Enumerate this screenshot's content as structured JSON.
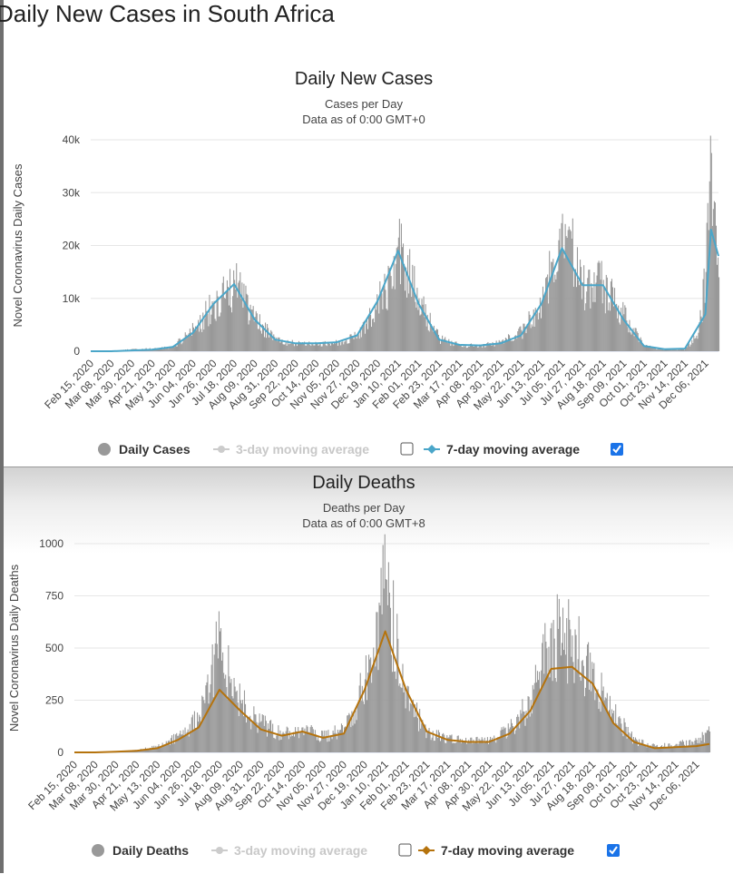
{
  "page_title": "Daily New Cases in South Africa",
  "x_dates": [
    "Feb 15, 2020",
    "Mar 08, 2020",
    "Mar 30, 2020",
    "Apr 21, 2020",
    "May 13, 2020",
    "Jun 04, 2020",
    "Jun 26, 2020",
    "Jul 18, 2020",
    "Aug 09, 2020",
    "Aug 31, 2020",
    "Sep 22, 2020",
    "Oct 14, 2020",
    "Nov 05, 2020",
    "Nov 27, 2020",
    "Dec 19, 2020",
    "Jan 10, 2021",
    "Feb 01, 2021",
    "Feb 23, 2021",
    "Mar 17, 2021",
    "Apr 08, 2021",
    "Apr 30, 2021",
    "May 22, 2021",
    "Jun 13, 2021",
    "Jul 05, 2021",
    "Jul 27, 2021",
    "Aug 18, 2021",
    "Sep 09, 2021",
    "Oct 01, 2021",
    "Oct 23, 2021",
    "Nov 14, 2021",
    "Dec 06, 2021"
  ],
  "chart_data": [
    {
      "type": "bar",
      "title": "Daily New Cases",
      "subtitle_1": "Cases per Day",
      "subtitle_2": "Data as of 0:00 GMT+0",
      "ylabel": "Novel Coronavirus Daily Cases",
      "ylim": [
        0,
        40000
      ],
      "y_ticks": [
        "0",
        "10k",
        "20k",
        "30k",
        "40k"
      ],
      "x_start": "Feb 15, 2020",
      "x_end": "Dec 20, 2021",
      "grid": true,
      "legend_placement": "bottom-center",
      "bar_color": "#999999",
      "line_color": "#4aa6c9",
      "series": [
        {
          "name": "Daily Cases",
          "type": "bar",
          "dates": [
            "Feb 15, 2020",
            "Mar 08, 2020",
            "Mar 30, 2020",
            "Apr 21, 2020",
            "May 13, 2020",
            "Jun 04, 2020",
            "Jun 26, 2020",
            "Jul 18, 2020",
            "Aug 09, 2020",
            "Aug 31, 2020",
            "Sep 22, 2020",
            "Oct 14, 2020",
            "Nov 05, 2020",
            "Nov 27, 2020",
            "Dec 19, 2020",
            "Jan 01, 2021",
            "Jan 10, 2021",
            "Feb 01, 2021",
            "Feb 23, 2021",
            "Mar 17, 2021",
            "Apr 08, 2021",
            "Apr 30, 2021",
            "May 22, 2021",
            "Jun 13, 2021",
            "Jul 01, 2021",
            "Jul 05, 2021",
            "Jul 27, 2021",
            "Aug 18, 2021",
            "Sep 09, 2021",
            "Oct 01, 2021",
            "Oct 23, 2021",
            "Nov 14, 2021",
            "Nov 28, 2021",
            "Dec 06, 2021",
            "Dec 12, 2021",
            "Dec 20, 2021"
          ],
          "values": [
            0,
            0,
            400,
            500,
            800,
            4500,
            9500,
            13500,
            6500,
            2300,
            1500,
            1400,
            1800,
            3000,
            10000,
            15000,
            21500,
            10000,
            2500,
            1200,
            1100,
            1800,
            4000,
            9500,
            21000,
            26000,
            13000,
            13500,
            7000,
            1000,
            300,
            400,
            3500,
            15000,
            37500,
            14000
          ]
        },
        {
          "name": "3-day moving average",
          "visible": false
        },
        {
          "name": "7-day moving average",
          "type": "line",
          "visible": true,
          "dates": [
            "Feb 15, 2020",
            "Mar 08, 2020",
            "Mar 30, 2020",
            "Apr 21, 2020",
            "May 13, 2020",
            "Jun 04, 2020",
            "Jun 26, 2020",
            "Jul 18, 2020",
            "Aug 09, 2020",
            "Aug 31, 2020",
            "Sep 22, 2020",
            "Oct 14, 2020",
            "Nov 05, 2020",
            "Nov 27, 2020",
            "Dec 19, 2020",
            "Jan 10, 2021",
            "Feb 01, 2021",
            "Feb 23, 2021",
            "Mar 17, 2021",
            "Apr 08, 2021",
            "Apr 30, 2021",
            "May 22, 2021",
            "Jun 13, 2021",
            "Jul 05, 2021",
            "Jul 27, 2021",
            "Aug 18, 2021",
            "Sep 09, 2021",
            "Oct 01, 2021",
            "Oct 23, 2021",
            "Nov 14, 2021",
            "Dec 06, 2021",
            "Dec 12, 2021",
            "Dec 20, 2021"
          ],
          "values": [
            0,
            0,
            150,
            300,
            800,
            3500,
            9000,
            12700,
            6000,
            2200,
            1500,
            1500,
            1700,
            3000,
            9500,
            19000,
            9000,
            2200,
            1200,
            1100,
            1500,
            3000,
            9000,
            19500,
            12500,
            12500,
            6000,
            1000,
            400,
            500,
            7000,
            23000,
            18000
          ]
        }
      ],
      "legend": {
        "daily": "Daily Cases",
        "avg3": "3-day moving average",
        "avg7": "7-day moving average",
        "avg3_checked": false,
        "avg7_checked": true
      }
    },
    {
      "type": "bar",
      "title": "Daily Deaths",
      "subtitle_1": "Deaths per Day",
      "subtitle_2": "Data as of 0:00 GMT+8",
      "ylabel": "Novel Coronavirus Daily Deaths",
      "ylim": [
        0,
        1000
      ],
      "y_ticks": [
        "0",
        "250",
        "500",
        "750",
        "1000"
      ],
      "x_start": "Feb 15, 2020",
      "x_end": "Dec 20, 2021",
      "grid": true,
      "legend_placement": "bottom-center",
      "bar_color": "#999999",
      "line_color": "#b5730d",
      "series": [
        {
          "name": "Daily Deaths",
          "type": "bar",
          "dates": [
            "Feb 15, 2020",
            "Mar 08, 2020",
            "Mar 30, 2020",
            "Apr 21, 2020",
            "May 13, 2020",
            "Jun 04, 2020",
            "Jun 26, 2020",
            "Jul 18, 2020",
            "Aug 09, 2020",
            "Aug 31, 2020",
            "Sep 22, 2020",
            "Oct 14, 2020",
            "Nov 05, 2020",
            "Nov 27, 2020",
            "Dec 19, 2020",
            "Jan 10, 2021",
            "Feb 01, 2021",
            "Feb 23, 2021",
            "Mar 17, 2021",
            "Apr 08, 2021",
            "Apr 30, 2021",
            "May 22, 2021",
            "Jun 13, 2021",
            "Jul 05, 2021",
            "Jul 27, 2021",
            "Aug 18, 2021",
            "Sep 09, 2021",
            "Oct 01, 2021",
            "Oct 23, 2021",
            "Nov 14, 2021",
            "Dec 06, 2021",
            "Dec 20, 2021"
          ],
          "values": [
            0,
            0,
            5,
            10,
            30,
            80,
            180,
            580,
            250,
            150,
            90,
            120,
            80,
            120,
            350,
            830,
            300,
            100,
            70,
            60,
            60,
            120,
            250,
            620,
            560,
            400,
            200,
            60,
            30,
            40,
            60,
            100
          ]
        },
        {
          "name": "3-day moving average",
          "visible": false
        },
        {
          "name": "7-day moving average",
          "type": "line",
          "visible": true,
          "dates": [
            "Feb 15, 2020",
            "Mar 08, 2020",
            "Mar 30, 2020",
            "Apr 21, 2020",
            "May 13, 2020",
            "Jun 04, 2020",
            "Jun 26, 2020",
            "Jul 18, 2020",
            "Aug 09, 2020",
            "Aug 31, 2020",
            "Sep 22, 2020",
            "Oct 14, 2020",
            "Nov 05, 2020",
            "Nov 27, 2020",
            "Dec 19, 2020",
            "Jan 10, 2021",
            "Feb 01, 2021",
            "Feb 23, 2021",
            "Mar 17, 2021",
            "Apr 08, 2021",
            "Apr 30, 2021",
            "May 22, 2021",
            "Jun 13, 2021",
            "Jul 05, 2021",
            "Jul 27, 2021",
            "Aug 18, 2021",
            "Sep 09, 2021",
            "Oct 01, 2021",
            "Oct 23, 2021",
            "Nov 14, 2021",
            "Dec 06, 2021",
            "Dec 20, 2021"
          ],
          "values": [
            0,
            0,
            3,
            8,
            20,
            60,
            120,
            300,
            200,
            110,
            80,
            100,
            70,
            90,
            300,
            580,
            300,
            100,
            60,
            50,
            50,
            90,
            200,
            400,
            410,
            330,
            140,
            50,
            20,
            25,
            30,
            40
          ]
        }
      ],
      "legend": {
        "daily": "Daily Deaths",
        "avg3": "3-day moving average",
        "avg7": "7-day moving average",
        "avg3_checked": false,
        "avg7_checked": true
      }
    }
  ]
}
